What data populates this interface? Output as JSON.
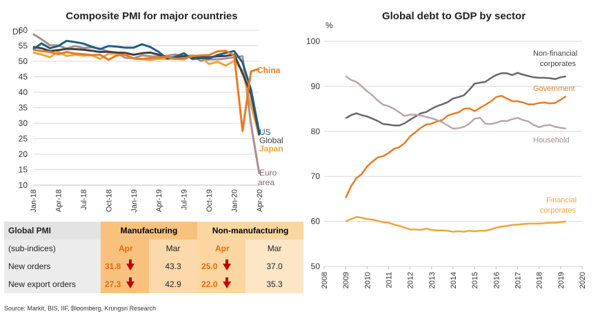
{
  "colors": {
    "china": "#e87a24",
    "us": "#1f5f86",
    "global": "#404040",
    "japan": "#f2a43a",
    "euro_area": "#a99090",
    "nonfin": "#6b6467",
    "government": "#e87a24",
    "household": "#b9a7a7",
    "financial": "#efa43a",
    "grid": "#d9d9d9",
    "axis_text": "#333333",
    "arrow": "#c00000"
  },
  "chart_data": [
    {
      "type": "line",
      "title": "Composite PMI for major countries",
      "ylabel": "DI",
      "ylim": [
        10,
        60
      ],
      "yticks": [
        10,
        15,
        20,
        25,
        30,
        35,
        40,
        45,
        50,
        55,
        60
      ],
      "xlabels": [
        "Jan-18",
        "Apr-18",
        "Jul-18",
        "Oct-18",
        "Jan-19",
        "Apr-19",
        "Jul-19",
        "Oct-19",
        "Jan-20",
        "Apr-20"
      ],
      "x": [
        "Jan-18",
        "Feb-18",
        "Mar-18",
        "Apr-18",
        "May-18",
        "Jun-18",
        "Jul-18",
        "Aug-18",
        "Sep-18",
        "Oct-18",
        "Nov-18",
        "Dec-18",
        "Jan-19",
        "Feb-19",
        "Mar-19",
        "Apr-19",
        "May-19",
        "Jun-19",
        "Jul-19",
        "Aug-19",
        "Sep-19",
        "Oct-19",
        "Nov-19",
        "Dec-19",
        "Jan-20",
        "Feb-20",
        "Mar-20",
        "Apr-20"
      ],
      "grid": true,
      "series": [
        {
          "name": "China",
          "color_key": "china",
          "values": [
            53.7,
            53.3,
            53.0,
            52.3,
            53.0,
            52.5,
            52.3,
            52.0,
            52.1,
            50.5,
            51.9,
            52.2,
            50.9,
            50.7,
            51.0,
            51.3,
            51.4,
            50.8,
            50.9,
            51.6,
            51.9,
            52.0,
            53.2,
            53.4,
            51.9,
            27.5,
            46.7,
            47.6
          ]
        },
        {
          "name": "US",
          "color_key": "us",
          "values": [
            53.8,
            55.8,
            54.2,
            54.9,
            56.6,
            56.2,
            55.7,
            54.7,
            53.9,
            54.9,
            54.7,
            54.4,
            54.4,
            55.5,
            54.6,
            53.0,
            50.9,
            51.5,
            52.6,
            50.7,
            51.0,
            50.9,
            52.0,
            52.7,
            53.3,
            49.6,
            40.9,
            27.0
          ]
        },
        {
          "name": "Global",
          "color_key": "global",
          "values": [
            54.6,
            54.2,
            53.3,
            53.6,
            54.0,
            53.9,
            53.7,
            53.4,
            53.0,
            53.1,
            52.8,
            52.7,
            52.1,
            52.6,
            52.8,
            52.1,
            51.2,
            51.2,
            51.7,
            51.3,
            51.4,
            51.3,
            51.6,
            51.7,
            52.2,
            46.1,
            39.4,
            26.2
          ]
        },
        {
          "name": "Japan",
          "color_key": "japan",
          "values": [
            52.8,
            52.2,
            51.3,
            53.1,
            51.7,
            52.1,
            51.8,
            52.0,
            50.7,
            52.5,
            52.4,
            52.0,
            50.9,
            50.7,
            50.4,
            50.8,
            50.7,
            50.8,
            50.6,
            51.9,
            51.5,
            49.1,
            49.8,
            48.6,
            50.1,
            47.0,
            35.8,
            25.8
          ]
        },
        {
          "name": "Euro area",
          "color_key": "euro_area",
          "values": [
            58.8,
            57.1,
            55.2,
            55.1,
            54.1,
            54.9,
            54.3,
            54.5,
            54.1,
            53.1,
            52.7,
            51.1,
            51.0,
            51.9,
            51.6,
            51.5,
            51.8,
            52.2,
            51.5,
            51.9,
            50.1,
            50.6,
            50.6,
            50.9,
            51.3,
            51.6,
            29.7,
            13.6
          ]
        }
      ],
      "series_labels": [
        {
          "key": "china",
          "text": "China"
        },
        {
          "key": "us",
          "text": "US"
        },
        {
          "key": "global",
          "text": "Global"
        },
        {
          "key": "japan",
          "text": "Japan"
        },
        {
          "key": "euro_area",
          "text": "Euro"
        },
        {
          "key": "euro_area",
          "text": "area"
        }
      ]
    },
    {
      "type": "line",
      "title": "Global debt to GDP by sector",
      "ylabel": "%",
      "ylim": [
        50,
        100
      ],
      "yticks": [
        50,
        60,
        70,
        80,
        90,
        100
      ],
      "xlim": [
        2008,
        2020
      ],
      "xticks": [
        2008,
        2009,
        2010,
        2011,
        2012,
        2013,
        2014,
        2015,
        2016,
        2017,
        2018,
        2019,
        2020
      ],
      "grid": true,
      "series": [
        {
          "name": "Non-financial corporates",
          "color_key": "nonfin",
          "x": [
            2009.0,
            2009.25,
            2009.5,
            2009.75,
            2010.0,
            2010.25,
            2010.5,
            2010.75,
            2011.0,
            2011.25,
            2011.5,
            2011.75,
            2012.0,
            2012.25,
            2012.5,
            2012.75,
            2013.0,
            2013.25,
            2013.5,
            2013.75,
            2014.0,
            2014.25,
            2014.5,
            2014.75,
            2015.0,
            2015.25,
            2015.5,
            2015.75,
            2016.0,
            2016.25,
            2016.5,
            2016.75,
            2017.0,
            2017.25,
            2017.5,
            2017.75,
            2018.0,
            2018.25,
            2018.5,
            2018.75,
            2019.0,
            2019.25
          ],
          "values": [
            82.9,
            83.6,
            84.0,
            83.6,
            83.3,
            82.8,
            82.3,
            81.6,
            81.5,
            81.3,
            81.3,
            81.8,
            82.6,
            83.3,
            84.0,
            84.3,
            85.0,
            85.6,
            86.0,
            86.5,
            87.3,
            87.6,
            88.0,
            89.2,
            90.6,
            90.8,
            91.0,
            91.8,
            92.5,
            92.9,
            92.9,
            92.5,
            93.0,
            92.6,
            92.3,
            92.0,
            91.9,
            91.9,
            91.8,
            91.6,
            92.0,
            92.2
          ]
        },
        {
          "name": "Government",
          "color_key": "government",
          "x": [
            2009.0,
            2009.25,
            2009.5,
            2009.75,
            2010.0,
            2010.25,
            2010.5,
            2010.75,
            2011.0,
            2011.25,
            2011.5,
            2011.75,
            2012.0,
            2012.25,
            2012.5,
            2012.75,
            2013.0,
            2013.25,
            2013.5,
            2013.75,
            2014.0,
            2014.25,
            2014.5,
            2014.75,
            2015.0,
            2015.25,
            2015.5,
            2015.75,
            2016.0,
            2016.25,
            2016.5,
            2016.75,
            2017.0,
            2017.25,
            2017.5,
            2017.75,
            2018.0,
            2018.25,
            2018.5,
            2018.75,
            2019.0,
            2019.25
          ],
          "values": [
            65.2,
            67.8,
            69.6,
            70.5,
            72.2,
            73.3,
            74.2,
            74.5,
            75.2,
            76.1,
            76.5,
            77.4,
            78.9,
            79.8,
            80.8,
            81.5,
            81.7,
            82.2,
            82.5,
            83.5,
            83.9,
            84.2,
            85.0,
            85.1,
            84.5,
            85.2,
            85.9,
            86.6,
            87.6,
            87.9,
            87.3,
            86.7,
            86.7,
            86.4,
            86.0,
            86.0,
            86.3,
            86.4,
            86.2,
            86.3,
            87.0,
            87.8
          ]
        },
        {
          "name": "Household",
          "color_key": "household",
          "x": [
            2009.0,
            2009.25,
            2009.5,
            2009.75,
            2010.0,
            2010.25,
            2010.5,
            2010.75,
            2011.0,
            2011.25,
            2011.5,
            2011.75,
            2012.0,
            2012.25,
            2012.5,
            2012.75,
            2013.0,
            2013.25,
            2013.5,
            2013.75,
            2014.0,
            2014.25,
            2014.5,
            2014.75,
            2015.0,
            2015.25,
            2015.5,
            2015.75,
            2016.0,
            2016.25,
            2016.5,
            2016.75,
            2017.0,
            2017.25,
            2017.5,
            2017.75,
            2018.0,
            2018.25,
            2018.5,
            2018.75,
            2019.0,
            2019.25
          ],
          "values": [
            92.3,
            91.4,
            91.0,
            90.0,
            88.9,
            88.0,
            86.8,
            85.9,
            85.6,
            85.0,
            84.2,
            83.4,
            83.7,
            83.7,
            83.5,
            83.2,
            82.9,
            82.5,
            82.0,
            81.3,
            80.6,
            80.7,
            81.0,
            81.7,
            82.8,
            83.0,
            81.7,
            81.6,
            81.9,
            82.3,
            82.3,
            82.7,
            83.0,
            82.5,
            82.2,
            81.4,
            80.9,
            81.3,
            81.4,
            81.0,
            80.8,
            80.6
          ]
        },
        {
          "name": "Financial corporates",
          "color_key": "financial",
          "x": [
            2009.0,
            2009.25,
            2009.5,
            2009.75,
            2010.0,
            2010.25,
            2010.5,
            2010.75,
            2011.0,
            2011.25,
            2011.5,
            2011.75,
            2012.0,
            2012.25,
            2012.5,
            2012.75,
            2013.0,
            2013.25,
            2013.5,
            2013.75,
            2014.0,
            2014.25,
            2014.5,
            2014.75,
            2015.0,
            2015.25,
            2015.5,
            2015.75,
            2016.0,
            2016.25,
            2016.5,
            2016.75,
            2017.0,
            2017.25,
            2017.5,
            2017.75,
            2018.0,
            2018.25,
            2018.5,
            2018.75,
            2019.0,
            2019.25
          ],
          "values": [
            60.0,
            60.5,
            61.0,
            60.8,
            60.5,
            60.4,
            60.1,
            59.8,
            59.7,
            59.3,
            59.0,
            58.6,
            58.2,
            58.2,
            58.1,
            58.4,
            58.1,
            58.0,
            58.0,
            57.9,
            57.7,
            57.8,
            57.7,
            57.9,
            57.8,
            57.9,
            57.9,
            58.2,
            58.6,
            58.8,
            59.0,
            59.2,
            59.3,
            59.4,
            59.5,
            59.5,
            59.5,
            59.6,
            59.7,
            59.7,
            59.8,
            60.0
          ]
        }
      ],
      "series_labels": [
        {
          "key": "nonfin",
          "text": "Non-financial"
        },
        {
          "key": "nonfin",
          "text": "corporates"
        },
        {
          "key": "government",
          "text": "Government"
        },
        {
          "key": "household",
          "text": "Household"
        },
        {
          "key": "financial",
          "text": "Financial"
        },
        {
          "key": "financial",
          "text": "corporates"
        }
      ]
    }
  ],
  "pmi_table": {
    "title": "Global PMI",
    "subtitle": "(sub-indices)",
    "manufacturing_label": "Manufacturing",
    "nonmanufacturing_label": "Non-manufacturing",
    "apr_label": "Apr",
    "mar_label": "Mar",
    "rows": [
      {
        "label": "New orders",
        "m_apr": "31.8",
        "m_mar": "43.3",
        "n_apr": "25.0",
        "n_mar": "37.0"
      },
      {
        "label": "New export orders",
        "m_apr": "27.3",
        "m_mar": "42.9",
        "n_apr": "22.0",
        "n_mar": "35.3"
      }
    ]
  },
  "source": "Source: Markit, BIS, IIF, Bloomberg, Krungsri Research"
}
